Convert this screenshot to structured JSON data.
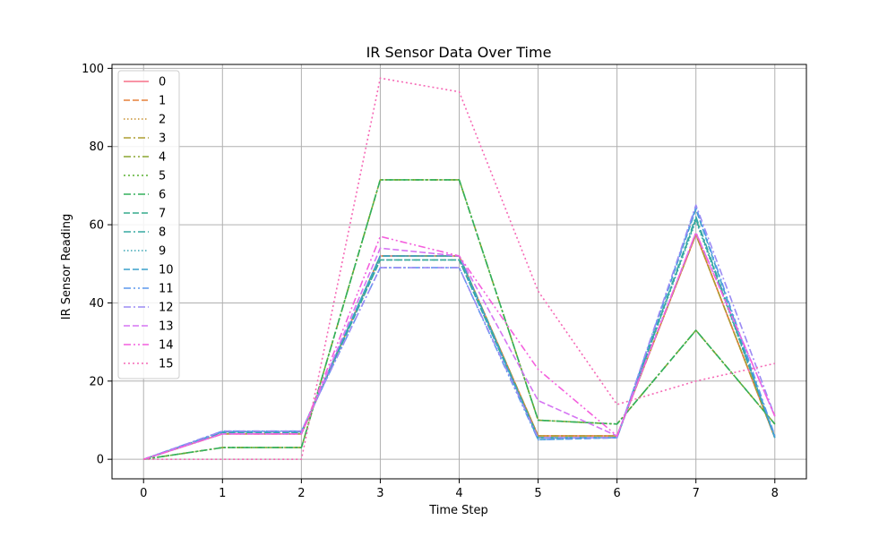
{
  "chart_data": {
    "type": "line",
    "title": "IR Sensor Data Over Time",
    "xlabel": "Time Step",
    "ylabel": "IR Sensor Reading",
    "x": [
      0,
      1,
      2,
      3,
      4,
      5,
      6,
      7,
      8
    ],
    "xlim": [
      -0.4,
      8.4
    ],
    "ylim": [
      -5,
      101
    ],
    "xticks": [
      0,
      1,
      2,
      3,
      4,
      5,
      6,
      7,
      8
    ],
    "yticks": [
      0,
      20,
      40,
      60,
      80,
      100
    ],
    "grid": true,
    "legend_position": "top-left",
    "series": [
      {
        "name": "0",
        "color": "#f77189",
        "dash": "solid",
        "values": [
          0,
          6.5,
          6.5,
          52,
          52,
          6,
          6,
          57.5,
          5.5
        ]
      },
      {
        "name": "1",
        "color": "#e5803a",
        "dash": "dashed",
        "values": [
          0,
          6.8,
          6.8,
          52,
          52,
          6,
          6,
          57.5,
          5.5
        ]
      },
      {
        "name": "2",
        "color": "#c79131",
        "dash": "dotted",
        "values": [
          0,
          6.5,
          6.5,
          52,
          52,
          6,
          6,
          57.5,
          5.5
        ]
      },
      {
        "name": "3",
        "color": "#ae9d31",
        "dash": "dashdot",
        "values": [
          0,
          6.5,
          6.5,
          52,
          52,
          6,
          6,
          57.5,
          5.5
        ]
      },
      {
        "name": "4",
        "color": "#8aa531",
        "dash": "dashdotdot",
        "values": [
          0,
          3,
          3,
          71.5,
          71.5,
          10,
          9,
          33,
          9
        ]
      },
      {
        "name": "5",
        "color": "#58b031",
        "dash": "dotted2",
        "values": [
          0,
          3,
          3,
          71.5,
          71.5,
          10,
          9,
          33,
          9
        ]
      },
      {
        "name": "6",
        "color": "#33b05c",
        "dash": "dashdot",
        "values": [
          0,
          3,
          3,
          71.5,
          71.5,
          10,
          9,
          33,
          9
        ]
      },
      {
        "name": "7",
        "color": "#35ac8b",
        "dash": "dashed",
        "values": [
          0,
          6.8,
          6.8,
          51,
          51,
          5.5,
          5.5,
          61.5,
          5.5
        ]
      },
      {
        "name": "8",
        "color": "#37a8a2",
        "dash": "dashdot",
        "values": [
          0,
          7,
          7,
          52,
          52,
          5.5,
          5.5,
          62,
          5.5
        ]
      },
      {
        "name": "9",
        "color": "#38a5b4",
        "dash": "dotted",
        "values": [
          0,
          7,
          7,
          51,
          51,
          5.5,
          5.5,
          61,
          5.5
        ]
      },
      {
        "name": "10",
        "color": "#3aa1cb",
        "dash": "dashed",
        "values": [
          0,
          7,
          7,
          52,
          52,
          5,
          5.5,
          64,
          5.5
        ]
      },
      {
        "name": "11",
        "color": "#5b98ed",
        "dash": "dashdotdot",
        "values": [
          0,
          7.2,
          7.2,
          49,
          49,
          5,
          5.5,
          64.5,
          6
        ]
      },
      {
        "name": "12",
        "color": "#9b8bf4",
        "dash": "dashdot",
        "values": [
          0,
          7.2,
          7.2,
          49,
          49,
          5.5,
          5.5,
          65,
          11
        ]
      },
      {
        "name": "13",
        "color": "#d575f3",
        "dash": "dashed",
        "values": [
          0,
          6.5,
          6.5,
          54,
          52,
          15,
          6,
          58,
          11
        ]
      },
      {
        "name": "14",
        "color": "#f45fdd",
        "dash": "dashdotdot",
        "values": [
          0,
          6.5,
          6.5,
          57,
          52,
          23,
          6,
          58,
          11
        ]
      },
      {
        "name": "15",
        "color": "#f668b5",
        "dash": "dotted2",
        "values": [
          0,
          0,
          0,
          97.5,
          94,
          43,
          14,
          20,
          24.5
        ]
      }
    ]
  }
}
